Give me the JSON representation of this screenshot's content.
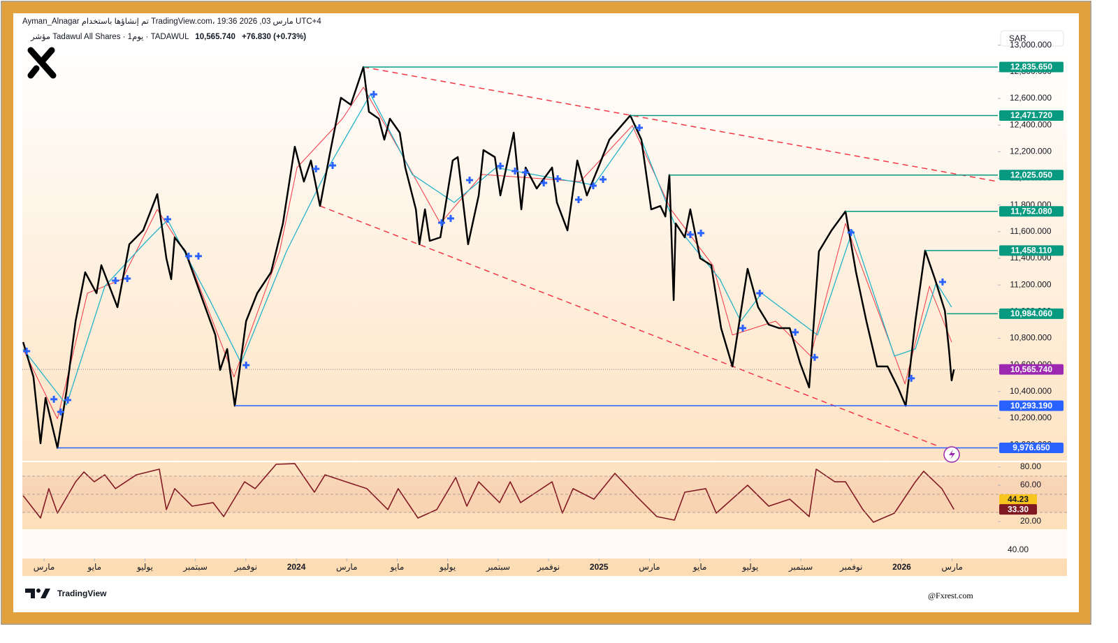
{
  "header": {
    "line1": "Ayman_Alnagar تم إنشاؤها باستخدام TradingView.com، 19:36 2026 ,03 مارس UTC+4",
    "symbol": "مؤشر Tadawul All Shares · 1يوم · TADAWUL",
    "price": "10,565.740",
    "change": "+76.830 (+0.73%)",
    "currency": "SAR"
  },
  "chart_data": [
    {
      "type": "line",
      "xlim": [
        1.14,
        39.81
      ],
      "ylim": [
        9880,
        13014
      ],
      "grid": false,
      "xticks": [
        {
          "value": 2,
          "label": "مارس"
        },
        {
          "value": 4,
          "label": "مايو"
        },
        {
          "value": 6,
          "label": "يوليو"
        },
        {
          "value": 8,
          "label": "سبتمبر"
        },
        {
          "value": 10,
          "label": "نوفمبر"
        },
        {
          "value": 12,
          "label": "2024"
        },
        {
          "value": 14,
          "label": "مارس"
        },
        {
          "value": 16,
          "label": "مايو"
        },
        {
          "value": 18,
          "label": "يوليو"
        },
        {
          "value": 20,
          "label": "سبتمبر"
        },
        {
          "value": 22,
          "label": "نوفمبر"
        },
        {
          "value": 24,
          "label": "2025"
        },
        {
          "value": 26,
          "label": "مارس"
        },
        {
          "value": 28,
          "label": "مايو"
        },
        {
          "value": 30,
          "label": "يوليو"
        },
        {
          "value": 32,
          "label": "سبتمبر"
        },
        {
          "value": 34,
          "label": "نوفمبر"
        },
        {
          "value": 36,
          "label": "2026"
        },
        {
          "value": 38,
          "label": "مارس"
        }
      ],
      "yticks": [
        {
          "value": 13000,
          "label": "13,000.000"
        },
        {
          "value": 12800,
          "label": "12,800.000"
        },
        {
          "value": 12600,
          "label": "12,600.000"
        },
        {
          "value": 12400,
          "label": "12,400.000"
        },
        {
          "value": 12200,
          "label": "12,200.000"
        },
        {
          "value": 12000,
          "label": "12,000.000"
        },
        {
          "value": 11800,
          "label": "11,800.000"
        },
        {
          "value": 11600,
          "label": "11,600.000"
        },
        {
          "value": 11400,
          "label": "11,400.000"
        },
        {
          "value": 11200,
          "label": "11,200.000"
        },
        {
          "value": 11000,
          "label": "11,000.000"
        },
        {
          "value": 10800,
          "label": "10,800.000"
        },
        {
          "value": 10600,
          "label": "10,600.000"
        },
        {
          "value": 10400,
          "label": "10,400.000"
        },
        {
          "value": 10200,
          "label": "10,200.000"
        },
        {
          "value": 10000,
          "label": "10,000.000"
        }
      ],
      "x": [
        1.17,
        1.58,
        1.86,
        2.06,
        2.53,
        2.89,
        3.25,
        3.63,
        4.08,
        4.27,
        4.91,
        5.38,
        5.93,
        6.49,
        6.85,
        7.04,
        7.18,
        7.6,
        8.29,
        8.79,
        8.98,
        9.26,
        9.56,
        10.01,
        10.45,
        11.0,
        11.47,
        11.94,
        12.3,
        12.58,
        12.94,
        13.33,
        13.77,
        14.16,
        14.66,
        14.88,
        15.27,
        15.49,
        15.71,
        16.1,
        16.32,
        16.74,
        16.88,
        17.1,
        17.29,
        17.71,
        18.2,
        18.4,
        18.81,
        19.23,
        19.42,
        19.87,
        20.09,
        20.62,
        20.92,
        21.09,
        21.53,
        22.14,
        22.33,
        22.75,
        23.14,
        23.52,
        23.97,
        24.41,
        25.24,
        25.68,
        26.07,
        26.43,
        26.63,
        26.79,
        26.96,
        27.04,
        27.4,
        27.62,
        28.01,
        28.45,
        28.84,
        29.29,
        29.89,
        30.31,
        30.73,
        31.14,
        31.56,
        31.97,
        32.33,
        32.72,
        33.22,
        33.77,
        34.19,
        34.6,
        35.02,
        35.44,
        35.85,
        36.16,
        36.54,
        36.93,
        37.32,
        37.71,
        37.87,
        37.98,
        38.07
      ],
      "series": [
        {
          "color": "#f23645",
          "width": 1,
          "x": [
            1.17,
            2.53,
            3.72,
            5.1,
            6.49,
            7.73,
            9.53,
            11.34,
            12.03,
            13.83,
            14.66,
            16.32,
            17.71,
            19.37,
            21.31,
            23.25,
            25.32,
            26.85,
            28.51,
            29.29,
            31.0,
            32.39,
            33.77,
            36.13,
            37.1,
            37.98
          ],
          "values": [
            10719,
            10195,
            11138,
            11243,
            11767,
            11400,
            10509,
            11452,
            12081,
            12448,
            12684,
            12134,
            11662,
            12029,
            12003,
            11976,
            12396,
            11767,
            11348,
            10824,
            10928,
            10666,
            11662,
            10457,
            11190,
            10771
          ]
        },
        {
          "color": "#26b3c8",
          "width": 1.3,
          "x": [
            1.17,
            2.89,
            4.41,
            6.07,
            6.9,
            8.57,
            9.81,
            11.61,
            13.27,
            14.94,
            16.6,
            18.26,
            19.92,
            22.14,
            23.8,
            25.46,
            26.99,
            28.79,
            29.62,
            30.45,
            32.66,
            34.05,
            35.71,
            36.54,
            37.37,
            37.98
          ],
          "values": [
            10719,
            10300,
            11190,
            11531,
            11688,
            11086,
            10614,
            11452,
            12081,
            12631,
            12029,
            11819,
            12081,
            12003,
            11950,
            12396,
            11662,
            11243,
            10928,
            11138,
            10824,
            11610,
            10666,
            10719,
            11217,
            11033
          ]
        },
        {
          "color": "#000000",
          "width": 2.5,
          "values": [
            10771,
            10509,
            10011,
            10352,
            9977,
            10404,
            10928,
            11295,
            11138,
            11348,
            11033,
            11505,
            11610,
            11882,
            11400,
            11243,
            11557,
            11452,
            11086,
            10824,
            10562,
            10719,
            10293,
            10928,
            11138,
            11295,
            11662,
            12238,
            11976,
            12134,
            11793,
            12186,
            12605,
            12553,
            12836,
            12500,
            12448,
            12291,
            12448,
            12343,
            12081,
            11767,
            11505,
            11767,
            11531,
            11557,
            12134,
            12160,
            11505,
            11872,
            12212,
            12160,
            11872,
            12343,
            11767,
            12081,
            11924,
            12081,
            11819,
            11610,
            12134,
            11872,
            12081,
            12291,
            12472,
            12291,
            11767,
            11793,
            11714,
            12025,
            11086,
            11662,
            11557,
            11767,
            11400,
            11348,
            10876,
            10588,
            11321,
            11033,
            10902,
            10876,
            10876,
            10614,
            10431,
            11452,
            11610,
            11752,
            11295,
            10928,
            10588,
            10588,
            10431,
            10293,
            10928,
            11458,
            11243,
            11007,
            10719,
            10483,
            10566
          ]
        }
      ],
      "markers": {
        "color": "#2962ff",
        "x": [
          1.31,
          2.39,
          2.66,
          2.94,
          4.83,
          5.3,
          6.9,
          7.73,
          8.12,
          10.01,
          12.78,
          13.44,
          15.07,
          17.76,
          18.12,
          18.87,
          20.09,
          20.67,
          21.09,
          21.81,
          22.36,
          23.19,
          23.77,
          24.16,
          25.6,
          27.62,
          28.04,
          29.7,
          30.37,
          31.78,
          32.55,
          33.99,
          36.38,
          37.62
        ],
        "values": [
          10703,
          10342,
          10247,
          10336,
          11232,
          11248,
          11693,
          11416,
          11416,
          10598,
          12071,
          12097,
          12631,
          11667,
          11699,
          11987,
          12092,
          12055,
          12045,
          11966,
          11997,
          11840,
          11945,
          11992,
          12380,
          11578,
          11589,
          10876,
          11138,
          10845,
          10656,
          11594,
          10499,
          11222
        ]
      },
      "trendlines": {
        "color": "#f23645",
        "lines": [
          {
            "x": [
              14.66,
              39.81
            ],
            "values": [
              12836,
              11976
            ]
          },
          {
            "x": [
              12.94,
              37.51
            ],
            "values": [
              11793,
              9985
            ]
          }
        ]
      },
      "levels": [
        {
          "value": 12835.65,
          "label": "12,835.650",
          "x_start": 14.66,
          "color": "#089981"
        },
        {
          "value": 12471.72,
          "label": "12,471.720",
          "x_start": 25.24,
          "color": "#089981"
        },
        {
          "value": 12025.05,
          "label": "12,025.050",
          "x_start": 26.79,
          "color": "#089981"
        },
        {
          "value": 11752.08,
          "label": "11,752.080",
          "x_start": 33.77,
          "color": "#089981"
        },
        {
          "value": 11458.11,
          "label": "11,458.110",
          "x_start": 36.93,
          "color": "#089981"
        },
        {
          "value": 10984.06,
          "label": "10,984.060",
          "x_start": 37.79,
          "color": "#089981"
        },
        {
          "value": 10293.19,
          "label": "10,293.190",
          "x_start": 9.56,
          "color": "#2962ff"
        },
        {
          "value": 9976.65,
          "label": "9,976.650",
          "x_start": 2.53,
          "color": "#2962ff"
        }
      ],
      "current": {
        "value": 10565.74,
        "label": "10,565.740",
        "color": "#9c27b0"
      }
    },
    {
      "type": "line",
      "xlim": [
        1.14,
        39.81
      ],
      "ylim": [
        11.5,
        85.4
      ],
      "color": "#801922",
      "yticks": [
        {
          "value": 80,
          "label": "80.00"
        },
        {
          "value": 60,
          "label": "60.00"
        },
        {
          "value": 20,
          "label": "20.00"
        }
      ],
      "bands": [
        70,
        50,
        30
      ],
      "x": [
        1.17,
        1.86,
        2.19,
        2.53,
        3.25,
        3.58,
        3.99,
        4.41,
        4.83,
        5.66,
        6.57,
        6.85,
        7.18,
        7.87,
        8.7,
        9.12,
        9.95,
        10.37,
        11.2,
        11.94,
        12.72,
        13.14,
        13.97,
        14.8,
        15.63,
        16.04,
        16.82,
        17.57,
        18.32,
        18.76,
        19.23,
        20.06,
        20.48,
        20.89,
        22.14,
        22.55,
        22.97,
        23.8,
        24.63,
        25.46,
        26.29,
        26.99,
        27.4,
        28.23,
        28.65,
        29.89,
        30.73,
        31.56,
        32.33,
        32.61,
        33.35,
        33.77,
        34.46,
        34.88,
        35.71,
        36.54,
        36.87,
        37.59,
        38.07
      ],
      "values": [
        48.5,
        23.8,
        56.2,
        29.2,
        63.8,
        74.6,
        63.8,
        71.5,
        56.2,
        71.5,
        77.7,
        33.1,
        56.2,
        36.9,
        40.8,
        25.4,
        63.8,
        56.2,
        83.1,
        83.8,
        52.3,
        71.5,
        63.8,
        56.2,
        33.1,
        56.2,
        23.8,
        33.1,
        68.5,
        36.9,
        63.8,
        40.8,
        63.8,
        40.8,
        63.8,
        29.2,
        56.2,
        44.6,
        73.1,
        48.5,
        25.4,
        21.5,
        52.3,
        56.2,
        29.2,
        60.0,
        36.9,
        44.6,
        25.4,
        77.7,
        63.8,
        63.8,
        33.1,
        19.2,
        29.2,
        63.8,
        75.4,
        56.2,
        33.3
      ],
      "readouts": [
        {
          "value": 44.23,
          "label": "44.23",
          "color": "#f7c51e",
          "text_color": "#131722"
        },
        {
          "value": 33.3,
          "label": "33.30",
          "color": "#801922",
          "text_color": "#ffffff"
        }
      ]
    }
  ],
  "lower_pane": {
    "scale_label": "40.00"
  },
  "footer": {
    "brand": "TradingView",
    "watermark": "@Fxrest.com"
  }
}
